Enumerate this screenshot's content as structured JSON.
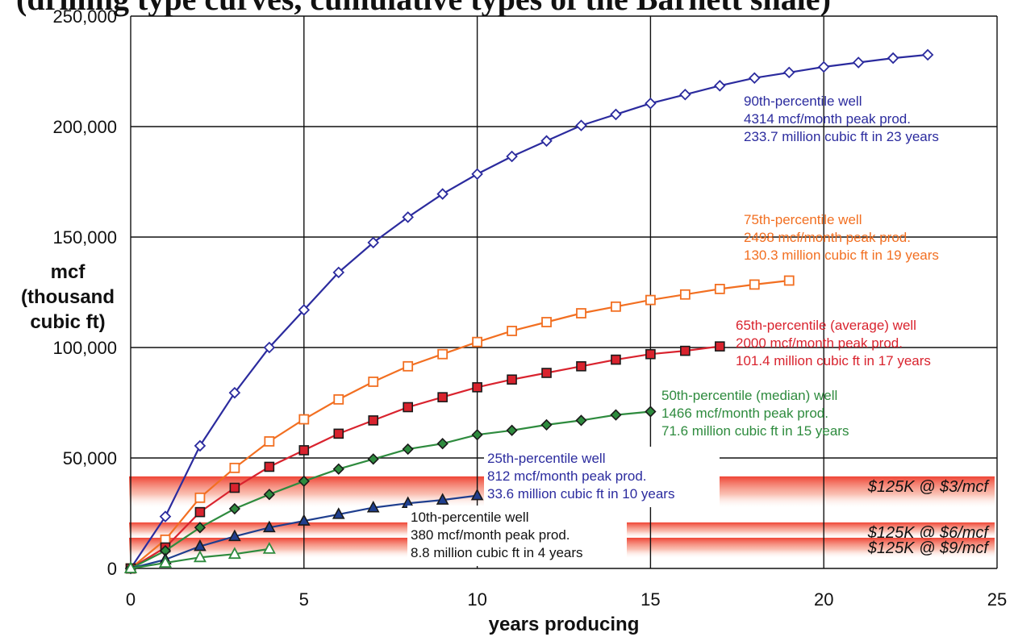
{
  "header_fragment": "(drilling type curves, cumulative types of the Barnett shale)",
  "chart_data": {
    "type": "line",
    "xlabel": "years producing",
    "ylabel": [
      "mcf",
      "(thousand",
      "cubic ft)"
    ],
    "xlim": [
      0,
      25
    ],
    "ylim": [
      0,
      250000
    ],
    "x_ticks": [
      "0",
      "5",
      "10",
      "15",
      "20",
      "25"
    ],
    "y_ticks": [
      "0",
      "50,000",
      "100,000",
      "150,000",
      "200,000",
      "250,000"
    ],
    "grid": "major gridlines",
    "series": [
      {
        "color": "#2b2b9e",
        "marker": "diamond-open",
        "x": [
          0,
          1,
          2,
          3,
          4,
          5,
          6,
          7,
          8,
          9,
          10,
          11,
          12,
          13,
          14,
          15,
          16,
          17,
          18,
          19,
          20,
          21,
          22,
          23
        ],
        "values": [
          0,
          23500,
          55500,
          79500,
          100000,
          117000,
          134000,
          147500,
          159000,
          169500,
          178500,
          186500,
          193500,
          200500,
          205500,
          210500,
          214500,
          218500,
          222000,
          224500,
          227000,
          229000,
          231000,
          232500
        ]
      },
      {
        "color": "#f26f21",
        "marker": "square-open",
        "x": [
          0,
          1,
          2,
          3,
          4,
          5,
          6,
          7,
          8,
          9,
          10,
          11,
          12,
          13,
          14,
          15,
          16,
          17,
          18,
          19
        ],
        "values": [
          0,
          13000,
          32000,
          45500,
          57500,
          67500,
          76500,
          84500,
          91500,
          97000,
          102500,
          107500,
          111500,
          115500,
          118500,
          121500,
          124000,
          126500,
          128500,
          130300
        ]
      },
      {
        "color": "#d9232e",
        "marker": "square-filled",
        "x": [
          0,
          1,
          2,
          3,
          4,
          5,
          6,
          7,
          8,
          9,
          10,
          11,
          12,
          13,
          14,
          15,
          16,
          17
        ],
        "values": [
          0,
          9500,
          25500,
          36500,
          46000,
          53500,
          61000,
          67000,
          73000,
          77500,
          82000,
          85500,
          88500,
          91500,
          94500,
          97000,
          98500,
          100500
        ]
      },
      {
        "color": "#2e8b3e",
        "marker": "diamond-filled",
        "x": [
          0,
          1,
          2,
          3,
          4,
          5,
          6,
          7,
          8,
          9,
          10,
          11,
          12,
          13,
          14,
          15
        ],
        "values": [
          0,
          8000,
          18500,
          27000,
          33500,
          39500,
          45000,
          49500,
          54000,
          56500,
          60500,
          62500,
          65000,
          67000,
          69500,
          71000
        ]
      },
      {
        "color": "#1f3f8f",
        "marker": "triangle-filled",
        "x": [
          0,
          1,
          2,
          3,
          4,
          5,
          6,
          7,
          8,
          9,
          10
        ],
        "values": [
          0,
          4000,
          10000,
          14500,
          18500,
          21500,
          24500,
          27500,
          29500,
          31000,
          33000
        ]
      },
      {
        "color": "#2e8b3e",
        "marker": "triangle-open",
        "x": [
          0,
          1,
          2,
          3,
          4
        ],
        "values": [
          0,
          2500,
          5000,
          6500,
          8800
        ]
      }
    ],
    "annotations": [
      {
        "color": "#2b2b9e",
        "lines": [
          "90th-percentile well",
          "4314 mcf/month peak prod.",
          "233.7 million cubic ft in 23 years"
        ]
      },
      {
        "color": "#f26f21",
        "lines": [
          "75th-percentile well",
          "2498 mcf/month peak prod.",
          "130.3 million cubic ft in 19 years"
        ]
      },
      {
        "color": "#d9232e",
        "lines": [
          "65th-percentile (average) well",
          "2000 mcf/month peak prod.",
          "101.4 million cubic ft in 17 years"
        ]
      },
      {
        "color": "#2e8b3e",
        "lines": [
          "50th-percentile (median) well",
          "1466 mcf/month peak prod.",
          "71.6 million cubic ft in 15 years"
        ]
      },
      {
        "color": "#2b2b9e",
        "lines": [
          "25th-percentile well",
          "812 mcf/month peak prod.",
          "33.6 million cubic ft in 10 years"
        ]
      },
      {
        "color": "#111111",
        "lines": [
          "10th-percentile well",
          "380 mcf/month peak prod.",
          "8.8 million cubic ft in 4 years"
        ]
      }
    ],
    "price_bands": [
      {
        "label": "$125K @ $3/mcf",
        "y": 41667
      },
      {
        "label": "$125K @ $6/mcf",
        "y": 20833
      },
      {
        "label": "$125K @ $9/mcf",
        "y": 13889
      }
    ]
  }
}
